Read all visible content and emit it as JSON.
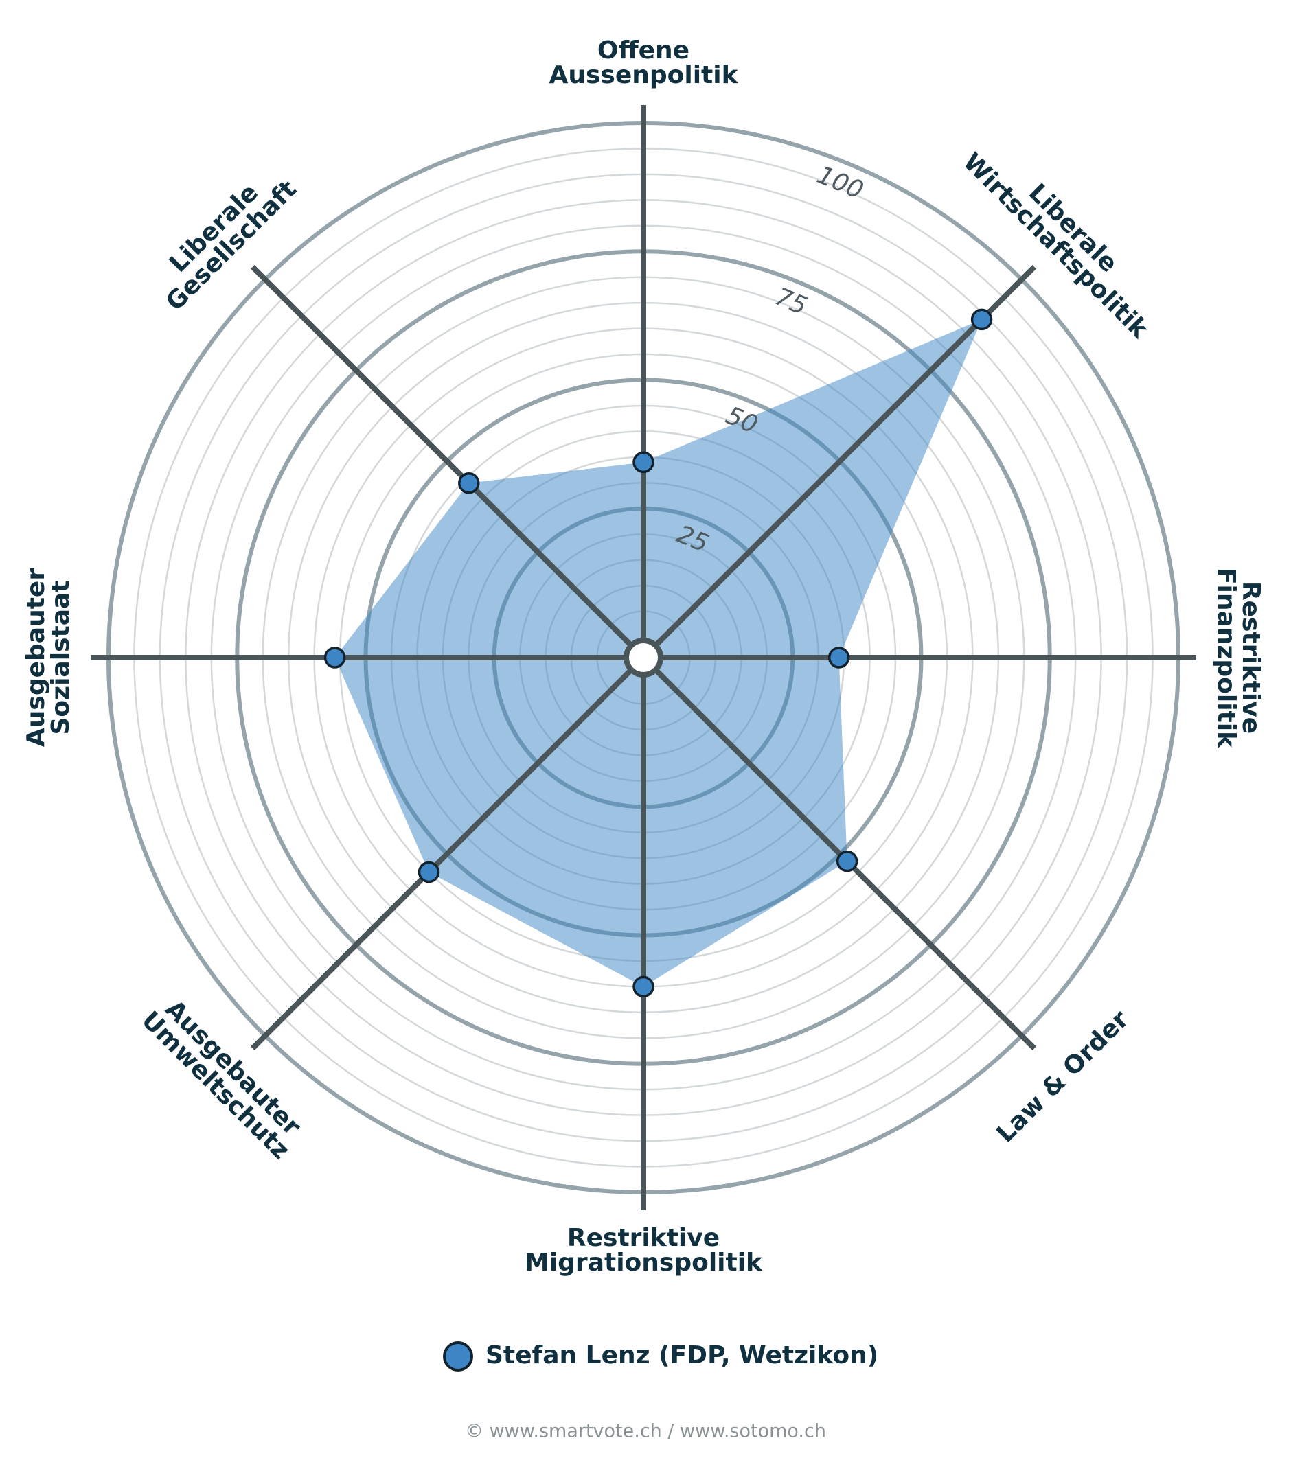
{
  "chart_data": {
    "type": "radar",
    "categories": [
      [
        "Offene",
        "Aussenpolitik"
      ],
      [
        "Liberale",
        "Wirtschaftspolitik"
      ],
      [
        "Restriktive",
        "Finanzpolitik"
      ],
      [
        "Law & Order"
      ],
      [
        "Restriktive",
        "Migrationspolitik"
      ],
      [
        "Ausgebauter",
        "Umweltschutz"
      ],
      [
        "Ausgebauter",
        "Sozialstaat"
      ],
      [
        "Liberale",
        "Gesellschaft"
      ]
    ],
    "series": [
      {
        "name": "Stefan Lenz (FDP, Wetzikon)",
        "color": "#3d85c4",
        "values": [
          34,
          89,
          34,
          52,
          60,
          55,
          56,
          44
        ]
      }
    ],
    "ylim": [
      0,
      100
    ],
    "yticks": [
      25,
      50,
      75,
      100
    ],
    "minor_grid_step": 5,
    "grid": true,
    "footer": "© www.smartvote.ch / www.sotomo.ch"
  }
}
